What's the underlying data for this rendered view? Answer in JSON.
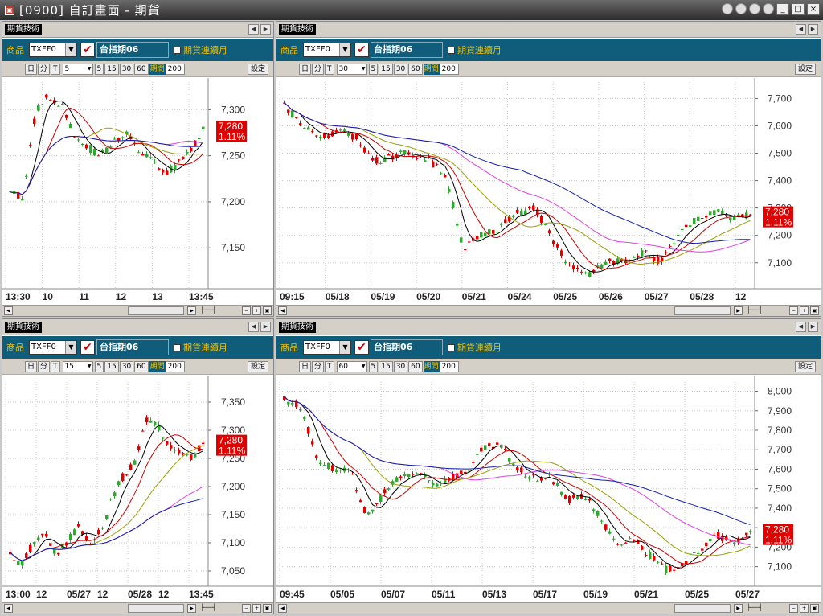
{
  "window": {
    "title": "[0900] 自訂畫面 - 期貨",
    "icon": "app-icon"
  },
  "common": {
    "tab": "期貨技術",
    "product_label": "商品",
    "product": "TXFF0",
    "contract": "台指期06",
    "continuous": "期貨連續月",
    "periods": [
      "5",
      "15",
      "30",
      "60"
    ],
    "period_label": "期間",
    "count": "200",
    "setting": "設定",
    "day": "日",
    "minute": "分",
    "tick": "T",
    "price_tag": "7,280",
    "pct_tag": "1.11%"
  },
  "colors": {
    "up": "#e00000",
    "down": "#2fa82f",
    "ma5": "#000000",
    "ma10": "#cc0000",
    "ma20": "#99a000",
    "ma60": "#e040e0",
    "ma120": "#1020b0",
    "ma240": "#e0a020"
  },
  "chart_data": [
    {
      "type": "candlestick",
      "interval": "5",
      "yticks": [
        "7,300",
        "7,250",
        "7,200",
        "7,150"
      ],
      "ylim": [
        7110,
        7330
      ],
      "xlabels": [
        "13:30",
        "10",
        "11",
        "12",
        "13",
        "13:45"
      ],
      "last": "7,280",
      "pct": "1.11%"
    },
    {
      "type": "candlestick",
      "interval": "30",
      "yticks": [
        "7,700",
        "7,600",
        "7,500",
        "7,400",
        "7,300",
        "7,200",
        "7,100"
      ],
      "ylim": [
        7020,
        7760
      ],
      "xlabels": [
        "09:15",
        "05/18",
        "05/19",
        "05/20",
        "05/21",
        "05/24",
        "05/25",
        "05/26",
        "05/27",
        "05/28",
        "12"
      ],
      "last": "7,280",
      "pct": "1.11%"
    },
    {
      "type": "candlestick",
      "interval": "15",
      "yticks": [
        "7,350",
        "7,300",
        "7,250",
        "7,200",
        "7,150",
        "7,100",
        "7,050"
      ],
      "ylim": [
        7030,
        7390
      ],
      "xlabels": [
        "13:00",
        "12",
        "05/27",
        "12",
        "05/28",
        "12",
        "13:45"
      ],
      "last": "7,280",
      "pct": "1.11%"
    },
    {
      "type": "candlestick",
      "interval": "60",
      "yticks": [
        "8,000",
        "7,900",
        "7,800",
        "7,700",
        "7,600",
        "7,500",
        "7,400",
        "7,300",
        "7,200",
        "7,100"
      ],
      "ylim": [
        7020,
        8060
      ],
      "xlabels": [
        "09:45",
        "05/05",
        "05/07",
        "05/11",
        "05/13",
        "05/17",
        "05/19",
        "05/21",
        "05/25",
        "05/27"
      ],
      "last": "7,280",
      "pct": "1.11%"
    }
  ]
}
